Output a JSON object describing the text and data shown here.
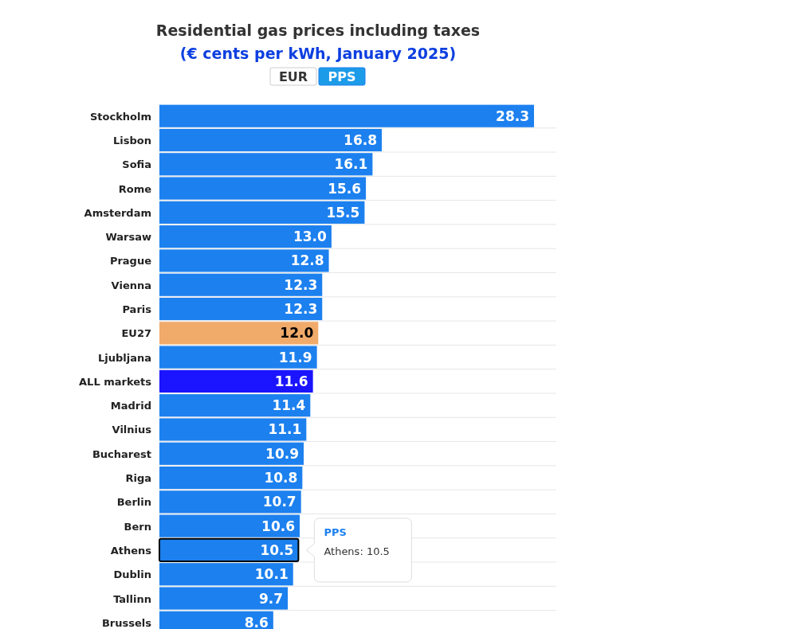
{
  "chart_data": {
    "type": "bar",
    "orientation": "horizontal",
    "title": "Residential gas prices including taxes",
    "subtitle": "(€ cents per kWh, January 2025)",
    "categories": [
      "Stockholm",
      "Lisbon",
      "Sofia",
      "Rome",
      "Amsterdam",
      "Warsaw",
      "Prague",
      "Vienna",
      "Paris",
      "EU27",
      "Ljubljana",
      "ALL markets",
      "Madrid",
      "Vilnius",
      "Bucharest",
      "Riga",
      "Berlin",
      "Bern",
      "Athens",
      "Dublin",
      "Tallinn",
      "Brussels"
    ],
    "values": [
      28.3,
      16.8,
      16.1,
      15.6,
      15.5,
      13.0,
      12.8,
      12.3,
      12.3,
      12.0,
      11.9,
      11.6,
      11.4,
      11.1,
      10.9,
      10.8,
      10.7,
      10.6,
      10.5,
      10.1,
      9.7,
      8.6
    ],
    "colors": [
      "#1c80ef",
      "#1c80ef",
      "#1c80ef",
      "#1c80ef",
      "#1c80ef",
      "#1c80ef",
      "#1c80ef",
      "#1c80ef",
      "#1c80ef",
      "#f0aa6a",
      "#1c80ef",
      "#1a14ff",
      "#1c80ef",
      "#1c80ef",
      "#1c80ef",
      "#1c80ef",
      "#1c80ef",
      "#1c80ef",
      "#1c80ef",
      "#1c80ef",
      "#1c80ef",
      "#1c80ef"
    ],
    "value_labels": [
      "28.3",
      "16.8",
      "16.1",
      "15.6",
      "15.5",
      "13.0",
      "12.8",
      "12.3",
      "12.3",
      "12.0",
      "11.9",
      "11.6",
      "11.4",
      "11.1",
      "10.9",
      "10.8",
      "10.7",
      "10.6",
      "10.5",
      "10.1",
      "9.7",
      "8.6"
    ],
    "annotations": [
      "EUR",
      "PPS",
      "PPS",
      {
        "text": "Athens: 10.5",
        "x": 10.5,
        "y": "Athens"
      }
    ]
  }
}
